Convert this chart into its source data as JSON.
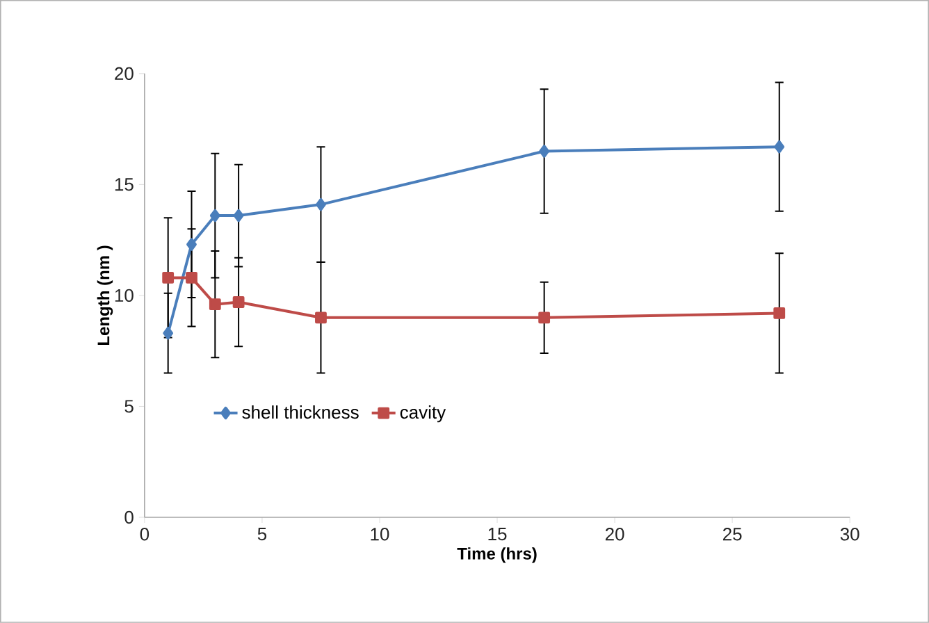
{
  "chart_data": {
    "type": "line",
    "xlabel": "Time (hrs)",
    "ylabel": "Length (nm )",
    "x": [
      1,
      2,
      3,
      4,
      7.5,
      17,
      27
    ],
    "series": [
      {
        "name": "shell thickness",
        "color": "#4a7ebb",
        "marker": "diamond",
        "values": [
          8.3,
          12.3,
          13.6,
          13.6,
          14.1,
          16.5,
          16.7
        ],
        "errors": [
          1.8,
          2.4,
          2.8,
          2.3,
          2.6,
          2.8,
          2.9
        ]
      },
      {
        "name": "cavity",
        "color": "#be4b48",
        "marker": "square",
        "values": [
          10.8,
          10.8,
          9.6,
          9.7,
          9.0,
          9.0,
          9.2
        ],
        "errors": [
          2.7,
          2.2,
          2.4,
          2.0,
          2.5,
          1.6,
          2.7
        ]
      }
    ],
    "xlim": [
      0,
      30
    ],
    "xticks": [
      0,
      5,
      10,
      15,
      20,
      25,
      30
    ],
    "ylim": [
      0,
      20
    ],
    "yticks": [
      0,
      5,
      10,
      15,
      20
    ],
    "grid": false,
    "legend": "left",
    "line_style": "solid"
  }
}
